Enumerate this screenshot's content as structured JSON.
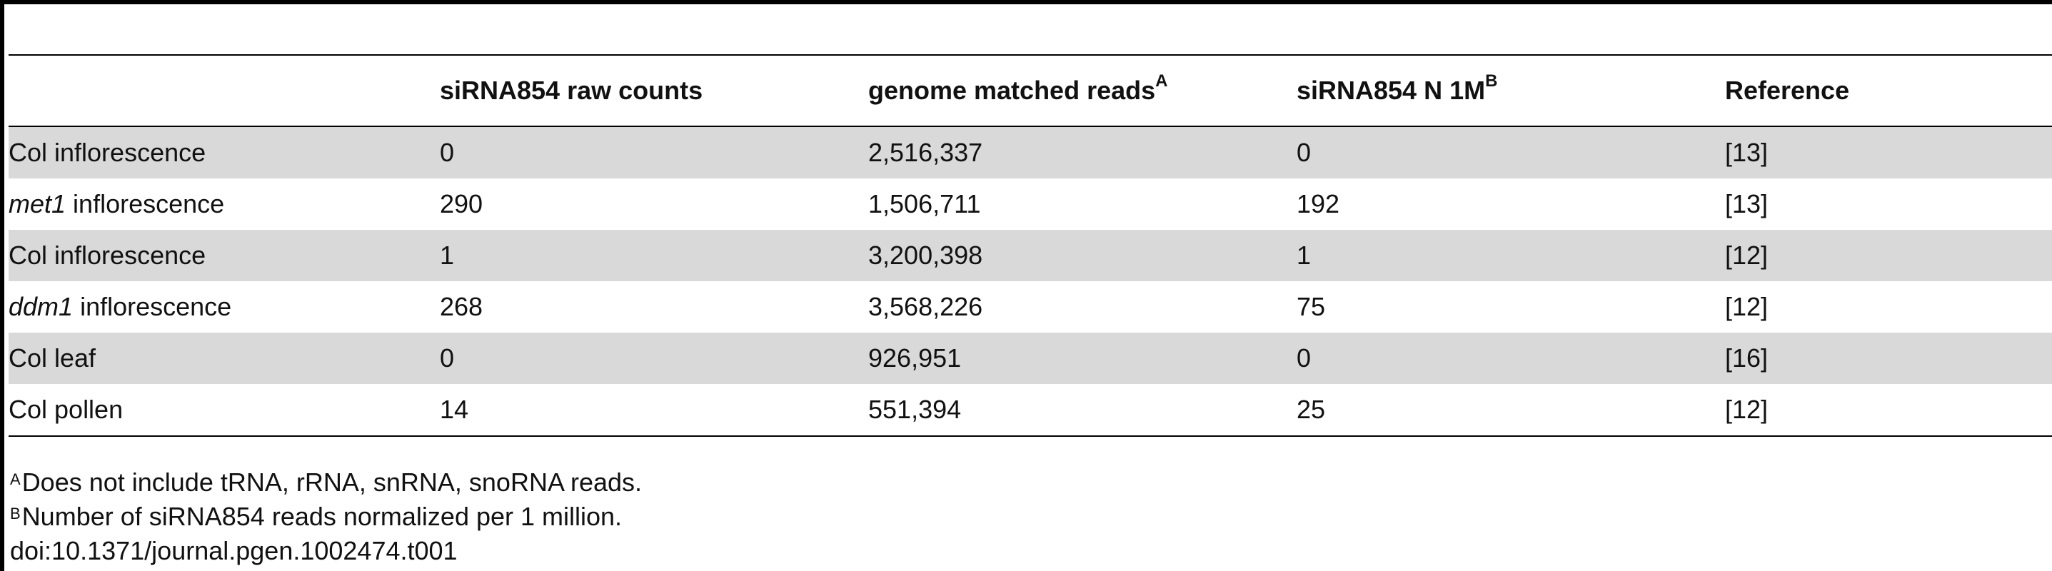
{
  "table": {
    "headers": [
      {
        "text": "",
        "sup": ""
      },
      {
        "text": "siRNA854 raw counts",
        "sup": ""
      },
      {
        "text": "genome matched reads",
        "sup": "A"
      },
      {
        "text": "siRNA854 N 1M",
        "sup": "B"
      },
      {
        "text": "Reference",
        "sup": ""
      }
    ],
    "rows": [
      {
        "sample_italic": "",
        "sample": "Col inflorescence",
        "raw": "0",
        "matched": "2,516,337",
        "norm": "0",
        "ref": "[13]"
      },
      {
        "sample_italic": "met1",
        "sample": " inflorescence",
        "raw": "290",
        "matched": "1,506,711",
        "norm": "192",
        "ref": "[13]"
      },
      {
        "sample_italic": "",
        "sample": "Col inflorescence",
        "raw": "1",
        "matched": "3,200,398",
        "norm": "1",
        "ref": "[12]"
      },
      {
        "sample_italic": "ddm1",
        "sample": " inflorescence",
        "raw": "268",
        "matched": "3,568,226",
        "norm": "75",
        "ref": "[12]"
      },
      {
        "sample_italic": "",
        "sample": "Col leaf",
        "raw": "0",
        "matched": "926,951",
        "norm": "0",
        "ref": "[16]"
      },
      {
        "sample_italic": "",
        "sample": "Col pollen",
        "raw": "14",
        "matched": "551,394",
        "norm": "25",
        "ref": "[12]"
      }
    ]
  },
  "footnotes": {
    "a_mark": "A",
    "a_text": "Does not include tRNA, rRNA, snRNA, snoRNA reads.",
    "b_mark": "B",
    "b_text": "Number of siRNA854 reads normalized per 1 million.",
    "doi": "doi:10.1371/journal.pgen.1002474.t001"
  }
}
